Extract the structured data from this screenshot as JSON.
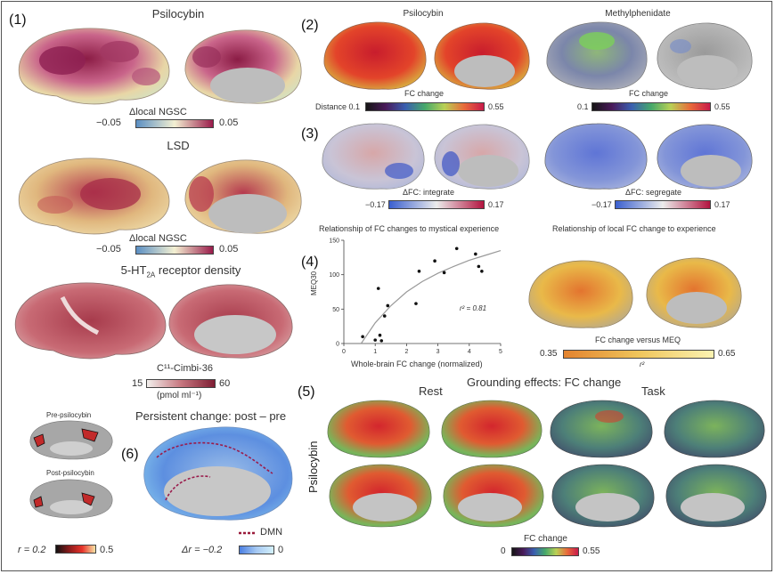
{
  "panel1": {
    "label": "(1)",
    "psilocybin_title": "Psilocybin",
    "lsd_title": "LSD",
    "cb_min": "−0.05",
    "cb_max": "0.05",
    "cb_label": "Δlocal NGSC",
    "cb2_min": "−0.05",
    "cb2_max": "0.05",
    "cb2_label": "Δlocal NGSC",
    "receptor_title_pre": "5-HT",
    "receptor_title_sub": "2A",
    "receptor_title_post": " receptor density",
    "receptor_cb_label": "C¹¹-Cimbi-36",
    "receptor_cb_min": "15",
    "receptor_cb_max": "60",
    "receptor_cb_unit": "(pmol ml⁻¹)",
    "pre_label": "Pre-psilocybin",
    "post_label": "Post-psilocybin",
    "r_min": "r = 0.2",
    "r_max": "0.5"
  },
  "panel2": {
    "label": "(2)",
    "psilo_title": "Psilocybin",
    "mph_title": "Methylphenidate",
    "cb_left_prefix": "Distance 0.1",
    "cb_left_max": "0.55",
    "cb_left_label": "FC change",
    "cb_right_min": "0.1",
    "cb_right_max": "0.55",
    "cb_right_label": "FC change"
  },
  "panel3": {
    "label": "(3)",
    "cb_left_min": "−0.17",
    "cb_left_max": "0.17",
    "cb_left_label": "ΔFC: integrate",
    "cb_right_min": "−0.17",
    "cb_right_max": "0.17",
    "cb_right_label": "ΔFC: segregate"
  },
  "panel4": {
    "label": "(4)",
    "scatter_title": "Relationship of FC changes to mystical experience",
    "brain_title": "Relationship of local FC change to experience",
    "ylabel": "MEQ30",
    "xlabel": "Whole-brain FC change (normalized)",
    "r2_text": "r² = 0.81",
    "cb_label": "FC change versus MEQ",
    "cb_min": "0.35",
    "cb_max": "0.65",
    "cb_sub": "r²"
  },
  "panel5": {
    "label": "(5)",
    "title": "Grounding effects: FC change",
    "rest": "Rest",
    "task": "Task",
    "row_label": "Psilocybin",
    "cb_label": "FC change",
    "cb_min": "0",
    "cb_max": "0.55"
  },
  "panel6": {
    "label": "(6)",
    "title": "Persistent change: post – pre",
    "dmn": "DMN",
    "cb_min": "Δr = −0.2",
    "cb_max": "0"
  },
  "chart_data": {
    "type": "scatter",
    "title": "Relationship of FC changes to mystical experience",
    "xlabel": "Whole-brain FC change (normalized)",
    "ylabel": "MEQ30",
    "xlim": [
      0,
      5
    ],
    "ylim": [
      0,
      150
    ],
    "xticks": [
      "0",
      "1",
      "2",
      "3",
      "4",
      "5"
    ],
    "yticks": [
      "0",
      "50",
      "100",
      "150"
    ],
    "annotation": "r² = 0.81",
    "points": [
      {
        "x": 0.6,
        "y": 10
      },
      {
        "x": 1.0,
        "y": 5
      },
      {
        "x": 1.1,
        "y": 80
      },
      {
        "x": 1.15,
        "y": 12
      },
      {
        "x": 1.2,
        "y": 4
      },
      {
        "x": 1.3,
        "y": 40
      },
      {
        "x": 1.4,
        "y": 55
      },
      {
        "x": 2.3,
        "y": 58
      },
      {
        "x": 2.4,
        "y": 105
      },
      {
        "x": 2.9,
        "y": 120
      },
      {
        "x": 3.2,
        "y": 103
      },
      {
        "x": 3.6,
        "y": 138
      },
      {
        "x": 4.2,
        "y": 130
      },
      {
        "x": 4.3,
        "y": 112
      },
      {
        "x": 4.4,
        "y": 105
      }
    ],
    "fit": [
      {
        "x": 0.55,
        "y": 0
      },
      {
        "x": 1.0,
        "y": 30
      },
      {
        "x": 1.5,
        "y": 55
      },
      {
        "x": 2.0,
        "y": 75
      },
      {
        "x": 2.5,
        "y": 90
      },
      {
        "x": 3.0,
        "y": 102
      },
      {
        "x": 3.5,
        "y": 112
      },
      {
        "x": 4.0,
        "y": 121
      },
      {
        "x": 4.5,
        "y": 128
      },
      {
        "x": 5.0,
        "y": 135
      }
    ]
  }
}
